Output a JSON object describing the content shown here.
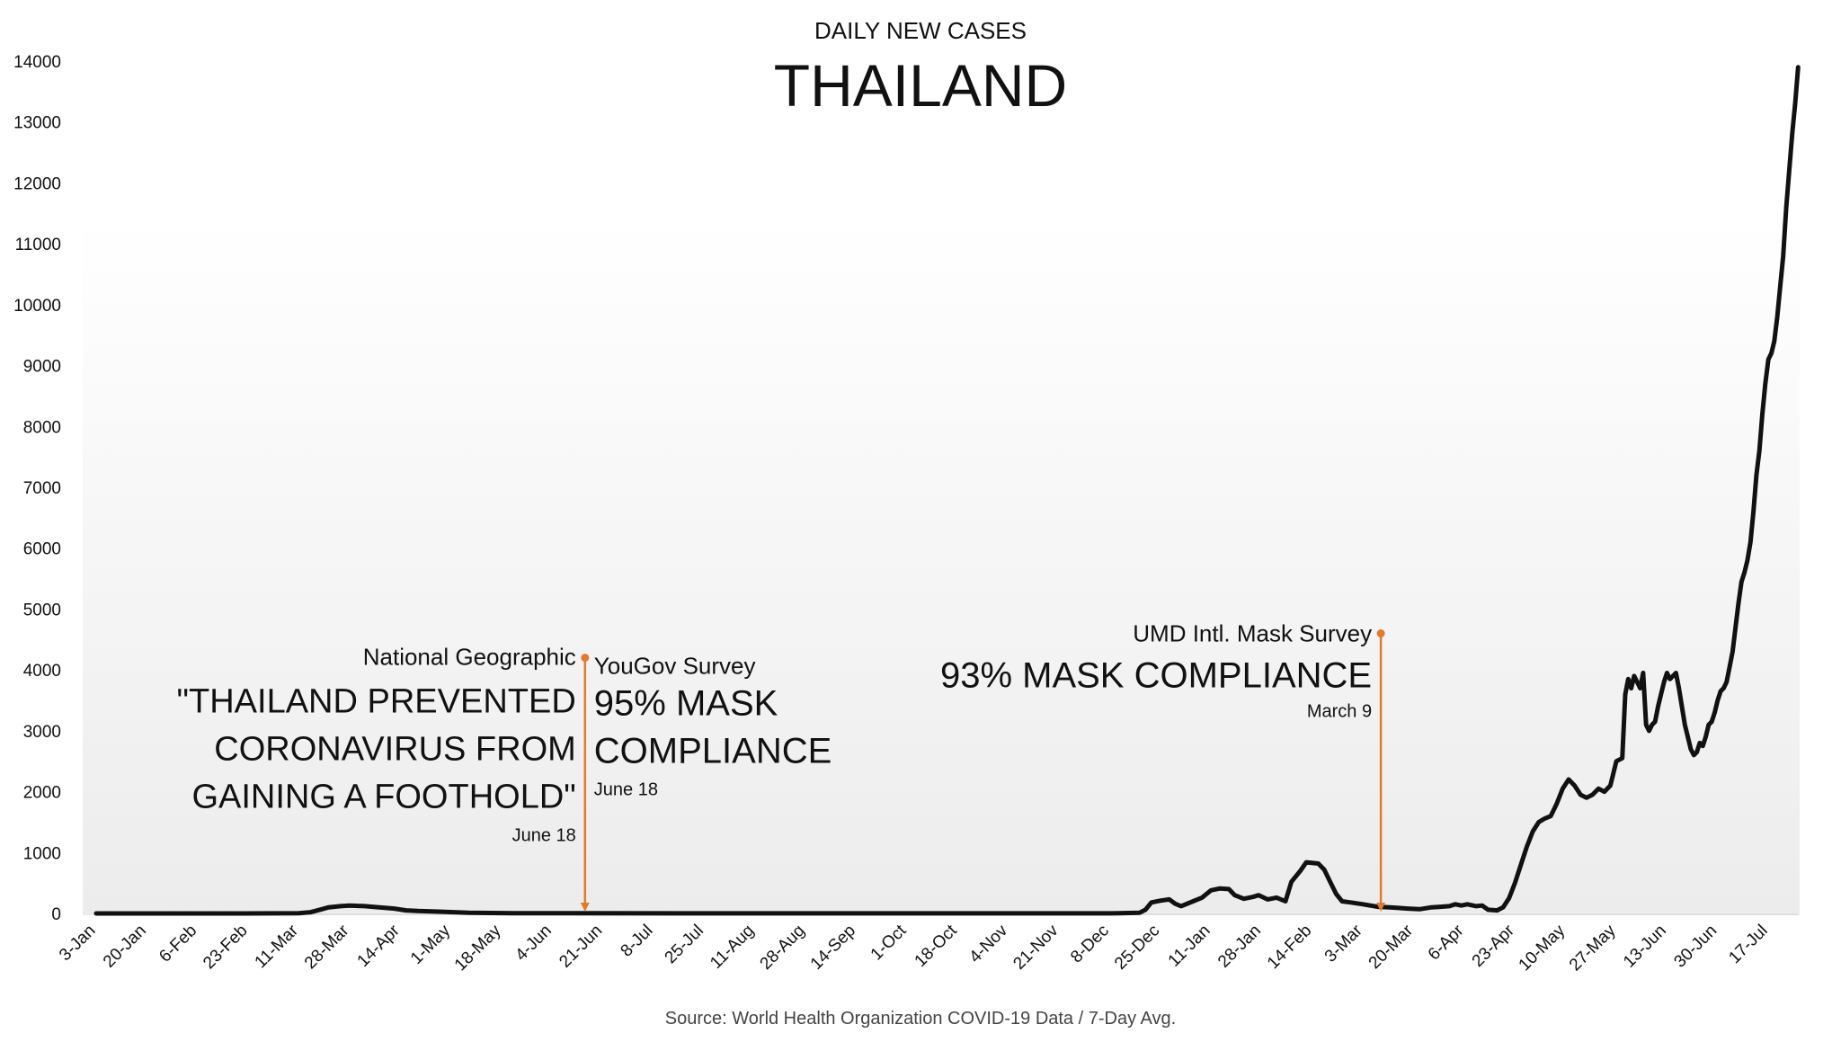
{
  "chart_data": {
    "type": "line",
    "subtitle": "DAILY NEW CASES",
    "title": "THAILAND",
    "source": "Source: World Health Organization COVID-19 Data / 7-Day Avg.",
    "ylim": [
      0,
      14000
    ],
    "y_ticks": [
      0,
      1000,
      2000,
      3000,
      4000,
      5000,
      6000,
      7000,
      8000,
      9000,
      10000,
      11000,
      12000,
      13000,
      14000
    ],
    "x_tick_labels": [
      "3-Jan",
      "20-Jan",
      "6-Feb",
      "23-Feb",
      "11-Mar",
      "28-Mar",
      "14-Apr",
      "1-May",
      "18-May",
      "4-Jun",
      "21-Jun",
      "8-Jul",
      "25-Jul",
      "11-Aug",
      "28-Aug",
      "14-Sep",
      "1-Oct",
      "18-Oct",
      "4-Nov",
      "21-Nov",
      "8-Dec",
      "25-Dec",
      "11-Jan",
      "28-Jan",
      "14-Feb",
      "3-Mar",
      "20-Mar",
      "6-Apr",
      "23-Apr",
      "10-May",
      "27-May",
      "13-Jun",
      "30-Jun",
      "17-Jul"
    ],
    "x_tick_days": [
      0,
      17,
      34,
      51,
      68,
      85,
      102,
      119,
      136,
      153,
      170,
      187,
      204,
      221,
      238,
      255,
      272,
      289,
      306,
      323,
      340,
      357,
      374,
      391,
      408,
      425,
      442,
      459,
      476,
      493,
      510,
      527,
      544,
      561
    ],
    "xlim_days": [
      0,
      570
    ],
    "grid": false,
    "legend": "none",
    "series": [
      {
        "color": "#111111",
        "points": [
          [
            0,
            0
          ],
          [
            50,
            0
          ],
          [
            68,
            5
          ],
          [
            72,
            20
          ],
          [
            75,
            60
          ],
          [
            78,
            100
          ],
          [
            82,
            120
          ],
          [
            85,
            130
          ],
          [
            90,
            120
          ],
          [
            95,
            100
          ],
          [
            100,
            80
          ],
          [
            104,
            50
          ],
          [
            108,
            40
          ],
          [
            115,
            30
          ],
          [
            120,
            20
          ],
          [
            125,
            10
          ],
          [
            140,
            3
          ],
          [
            340,
            2
          ],
          [
            343,
            3
          ],
          [
            350,
            10
          ],
          [
            352,
            60
          ],
          [
            354,
            180
          ],
          [
            357,
            210
          ],
          [
            360,
            230
          ],
          [
            362,
            160
          ],
          [
            364,
            120
          ],
          [
            368,
            200
          ],
          [
            371,
            260
          ],
          [
            374,
            380
          ],
          [
            377,
            410
          ],
          [
            380,
            400
          ],
          [
            382,
            300
          ],
          [
            385,
            240
          ],
          [
            388,
            270
          ],
          [
            390,
            300
          ],
          [
            393,
            230
          ],
          [
            396,
            260
          ],
          [
            399,
            200
          ],
          [
            401,
            520
          ],
          [
            404,
            700
          ],
          [
            406,
            840
          ],
          [
            410,
            820
          ],
          [
            412,
            720
          ],
          [
            414,
            520
          ],
          [
            416,
            320
          ],
          [
            418,
            200
          ],
          [
            421,
            180
          ],
          [
            425,
            150
          ],
          [
            430,
            110
          ],
          [
            434,
            100
          ],
          [
            437,
            90
          ],
          [
            440,
            80
          ],
          [
            444,
            70
          ],
          [
            448,
            100
          ],
          [
            451,
            110
          ],
          [
            454,
            120
          ],
          [
            456,
            150
          ],
          [
            458,
            130
          ],
          [
            460,
            150
          ],
          [
            463,
            120
          ],
          [
            465,
            130
          ],
          [
            467,
            60
          ],
          [
            470,
            50
          ],
          [
            472,
            100
          ],
          [
            474,
            250
          ],
          [
            476,
            500
          ],
          [
            478,
            800
          ],
          [
            480,
            1100
          ],
          [
            482,
            1350
          ],
          [
            484,
            1500
          ],
          [
            486,
            1560
          ],
          [
            488,
            1600
          ],
          [
            490,
            1800
          ],
          [
            492,
            2050
          ],
          [
            494,
            2200
          ],
          [
            496,
            2100
          ],
          [
            498,
            1950
          ],
          [
            500,
            1900
          ],
          [
            502,
            1950
          ],
          [
            504,
            2050
          ],
          [
            506,
            2000
          ],
          [
            508,
            2100
          ],
          [
            510,
            2500
          ],
          [
            512,
            2550
          ],
          [
            513,
            3600
          ],
          [
            514,
            3850
          ],
          [
            515,
            3700
          ],
          [
            516,
            3900
          ],
          [
            517,
            3800
          ],
          [
            518,
            3700
          ],
          [
            519,
            3950
          ],
          [
            520,
            3100
          ],
          [
            521,
            3000
          ],
          [
            522,
            3100
          ],
          [
            523,
            3150
          ],
          [
            524,
            3400
          ],
          [
            525,
            3600
          ],
          [
            526,
            3800
          ],
          [
            527,
            3950
          ],
          [
            528,
            3850
          ],
          [
            529,
            3900
          ],
          [
            530,
            3950
          ],
          [
            531,
            3700
          ],
          [
            532,
            3400
          ],
          [
            533,
            3100
          ],
          [
            534,
            2900
          ],
          [
            535,
            2700
          ],
          [
            536,
            2600
          ],
          [
            537,
            2650
          ],
          [
            538,
            2800
          ],
          [
            539,
            2750
          ],
          [
            540,
            2900
          ],
          [
            541,
            3100
          ],
          [
            542,
            3150
          ],
          [
            543,
            3300
          ],
          [
            544,
            3500
          ],
          [
            545,
            3650
          ],
          [
            546,
            3700
          ],
          [
            547,
            3800
          ],
          [
            548,
            4050
          ],
          [
            549,
            4300
          ],
          [
            550,
            4700
          ],
          [
            551,
            5100
          ],
          [
            552,
            5450
          ],
          [
            553,
            5600
          ],
          [
            554,
            5800
          ],
          [
            555,
            6100
          ],
          [
            556,
            6600
          ],
          [
            557,
            7200
          ],
          [
            558,
            7600
          ],
          [
            559,
            8200
          ],
          [
            560,
            8700
          ],
          [
            561,
            9100
          ],
          [
            562,
            9200
          ],
          [
            563,
            9400
          ],
          [
            564,
            9800
          ],
          [
            565,
            10300
          ],
          [
            566,
            10800
          ],
          [
            567,
            11600
          ],
          [
            568,
            12200
          ],
          [
            569,
            12800
          ],
          [
            570,
            13300
          ],
          [
            571,
            13900
          ]
        ]
      }
    ],
    "annotations": [
      {
        "day": 164,
        "y_top": 4200,
        "color": "#e07b2e",
        "left_label": "National Geographic",
        "left_quote": [
          "\"THAILAND PREVENTED",
          "CORONAVIRUS FROM",
          "GAINING A FOOTHOLD\""
        ],
        "left_date": "June 18",
        "right_label": "YouGov Survey",
        "right_quote": [
          "95% MASK",
          "COMPLIANCE"
        ],
        "right_date": "June 18"
      },
      {
        "day": 431,
        "y_top": 4600,
        "color": "#e07b2e",
        "left_label": "UMD Intl. Mask Survey",
        "left_quote": [
          "93% MASK COMPLIANCE"
        ],
        "left_date": "March 9"
      }
    ]
  }
}
